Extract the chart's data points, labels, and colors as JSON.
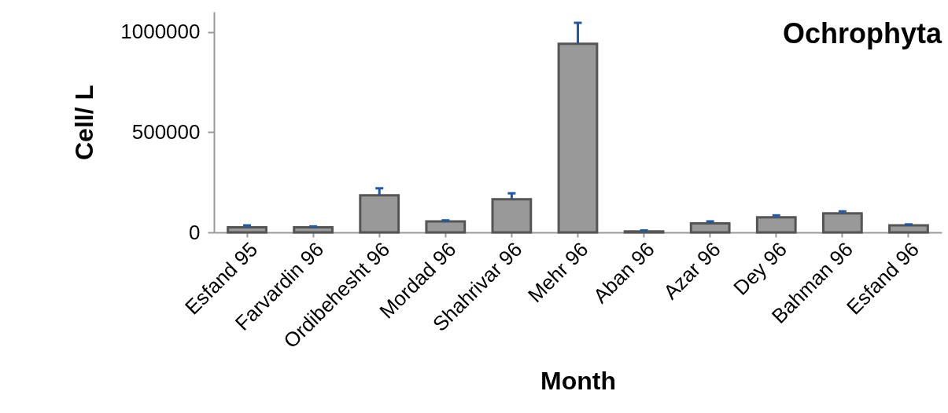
{
  "chart_data": {
    "type": "bar",
    "title": "Ochrophyta",
    "xlabel": "Month",
    "ylabel": "Cell/ L",
    "categories": [
      "Esfand 95",
      "Farvardin 96",
      "Ordibehesht 96",
      "Mordad 96",
      "Shahrivar 96",
      "Mehr 96",
      "Aban 96",
      "Azar 96",
      "Dey 96",
      "Bahman 96",
      "Esfand 96"
    ],
    "values": [
      25000,
      25000,
      185000,
      55000,
      165000,
      940000,
      5000,
      45000,
      75000,
      95000,
      35000
    ],
    "errors": [
      [
        25000,
        35000
      ],
      [
        25000,
        30000
      ],
      [
        185000,
        220000
      ],
      [
        55000,
        60000
      ],
      [
        165000,
        195000
      ],
      [
        940000,
        1045000
      ],
      [
        5000,
        10000
      ],
      [
        45000,
        55000
      ],
      [
        75000,
        85000
      ],
      [
        95000,
        105000
      ],
      [
        35000,
        40000
      ]
    ],
    "color": "#999999",
    "ylim": [
      0,
      1100000
    ],
    "yticks": [
      0,
      500000,
      1000000
    ],
    "grid": false
  }
}
